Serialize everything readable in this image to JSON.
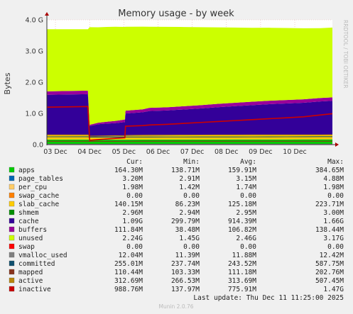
{
  "chart_data": {
    "type": "area",
    "title": "Memory usage - by week",
    "ylabel": "Bytes",
    "side_label": "RRDTOOL / TOBI OETIKER",
    "ylim": [
      0,
      4000000000.0
    ],
    "yticks": [
      {
        "value": 0,
        "label": "0.0"
      },
      {
        "value": 1000000000.0,
        "label": "1.0 G"
      },
      {
        "value": 2000000000.0,
        "label": "2.0 G"
      },
      {
        "value": 3000000000.0,
        "label": "3.0 G"
      },
      {
        "value": 4000000000.0,
        "label": "4.0 G"
      }
    ],
    "xlim": [
      0,
      8.35
    ],
    "xticks": [
      {
        "value": 0.25,
        "label": "03 Dec"
      },
      {
        "value": 1.25,
        "label": "04 Dec"
      },
      {
        "value": 2.25,
        "label": "05 Dec"
      },
      {
        "value": 3.25,
        "label": "06 Dec"
      },
      {
        "value": 4.25,
        "label": "07 Dec"
      },
      {
        "value": 5.25,
        "label": "08 Dec"
      },
      {
        "value": 6.25,
        "label": "09 Dec"
      },
      {
        "value": 7.25,
        "label": "10 Dec"
      }
    ],
    "x": [
      0,
      1.2,
      1.25,
      1.5,
      1.75,
      2.0,
      2.28,
      2.3,
      2.8,
      3.0,
      3.5,
      4.0,
      4.5,
      5.0,
      5.5,
      6.0,
      6.5,
      7.0,
      7.5,
      8.0,
      8.35
    ],
    "series": [
      {
        "name": "apps",
        "kind": "area",
        "color": "#00cc00",
        "values": [
          160000000.0,
          160000000.0,
          150000000.0,
          150000000.0,
          155000000.0,
          155000000.0,
          155000000.0,
          155000000.0,
          158000000.0,
          158000000.0,
          160000000.0,
          160000000.0,
          160000000.0,
          160000000.0,
          162000000.0,
          162000000.0,
          162000000.0,
          163000000.0,
          164000000.0,
          164000000.0,
          164000000.0
        ]
      },
      {
        "name": "page_tables",
        "kind": "area",
        "color": "#0066b3",
        "values": [
          3000000.0,
          3000000.0,
          3000000.0,
          3000000.0,
          3000000.0,
          3000000.0,
          3000000.0,
          3000000.0,
          3000000.0,
          3000000.0,
          3100000.0,
          3100000.0,
          3100000.0,
          3100000.0,
          3200000.0,
          3200000.0,
          3200000.0,
          3200000.0,
          3200000.0,
          3200000.0,
          3200000.0
        ]
      },
      {
        "name": "per_cpu",
        "kind": "area",
        "color": "#ff8000",
        "values": [
          1700000.0,
          1700000.0,
          1700000.0,
          1700000.0,
          1700000.0,
          1700000.0,
          1700000.0,
          1700000.0,
          1800000.0,
          1800000.0,
          1800000.0,
          1800000.0,
          1900000.0,
          1900000.0,
          1900000.0,
          2000000.0,
          2000000.0,
          2000000.0,
          2000000.0,
          2000000.0,
          2000000.0
        ]
      },
      {
        "name": "swap_cache",
        "kind": "area",
        "color": "#ffcc00",
        "values": [
          0,
          0,
          0,
          0,
          0,
          0,
          0,
          0,
          0,
          0,
          0,
          0,
          0,
          0,
          0,
          0,
          0,
          0,
          0,
          0,
          0
        ]
      },
      {
        "name": "slab_cache",
        "kind": "area",
        "color": "#ffcc00",
        "values": [
          130000000.0,
          130000000.0,
          86000000.0,
          95000000.0,
          100000000.0,
          105000000.0,
          110000000.0,
          115000000.0,
          120000000.0,
          122000000.0,
          125000000.0,
          128000000.0,
          130000000.0,
          132000000.0,
          133000000.0,
          135000000.0,
          136000000.0,
          137000000.0,
          138000000.0,
          140000000.0,
          140000000.0
        ]
      },
      {
        "name": "shmem",
        "kind": "area",
        "color": "#008f00",
        "values": [
          2950000.0,
          2950000.0,
          2950000.0,
          2950000.0,
          2950000.0,
          2950000.0,
          2950000.0,
          2950000.0,
          2950000.0,
          2950000.0,
          2950000.0,
          2950000.0,
          2950000.0,
          2950000.0,
          2950000.0,
          2960000.0,
          2960000.0,
          2960000.0,
          2960000.0,
          2960000.0,
          2960000.0
        ]
      },
      {
        "name": "cache",
        "kind": "area",
        "color": "#330099",
        "values": [
          1300000000.0,
          1320000000.0,
          350000000.0,
          400000000.0,
          410000000.0,
          420000000.0,
          450000000.0,
          720000000.0,
          750000000.0,
          790000000.0,
          800000000.0,
          830000000.0,
          860000000.0,
          900000000.0,
          930000000.0,
          960000000.0,
          990000000.0,
          1010000000.0,
          1030000000.0,
          1070000000.0,
          1090000000.0
        ]
      },
      {
        "name": "buffers",
        "kind": "area",
        "color": "#990099",
        "values": [
          110000000.0,
          112000000.0,
          40000000.0,
          50000000.0,
          60000000.0,
          70000000.0,
          80000000.0,
          90000000.0,
          95000000.0,
          100000000.0,
          103000000.0,
          105000000.0,
          107000000.0,
          108000000.0,
          109000000.0,
          110000000.0,
          110000000.0,
          111000000.0,
          111000000.0,
          112000000.0,
          112000000.0
        ]
      },
      {
        "name": "unused",
        "kind": "area",
        "color": "#ccff00",
        "values": [
          1990000000.0,
          1970000000.0,
          3130000000.0,
          3060000000.0,
          3040000000.0,
          3020000000.0,
          2970000000.0,
          2690000000.0,
          2650000000.0,
          2600000000.0,
          2580000000.0,
          2540000000.0,
          2500000000.0,
          2450000000.0,
          2410000000.0,
          2370000000.0,
          2340000000.0,
          2310000000.0,
          2280000000.0,
          2240000000.0,
          2240000000.0
        ]
      },
      {
        "name": "swap",
        "kind": "area",
        "color": "#ff0000",
        "values": [
          0,
          0,
          0,
          0,
          0,
          0,
          0,
          0,
          0,
          0,
          0,
          0,
          0,
          0,
          0,
          0,
          0,
          0,
          0,
          0,
          0
        ]
      },
      {
        "name": "vmalloc_used",
        "kind": "line",
        "color": "#808080",
        "values": [
          11900000.0,
          11900000.0,
          11400000.0,
          11500000.0,
          11600000.0,
          11700000.0,
          11800000.0,
          11800000.0,
          11800000.0,
          11800000.0,
          11900000.0,
          11900000.0,
          11900000.0,
          11900000.0,
          12000000.0,
          12000000.0,
          12000000.0,
          12000000.0,
          12000000.0,
          12000000.0,
          12000000.0
        ]
      },
      {
        "name": "committed",
        "kind": "line",
        "color": "#0f4f6e",
        "values": [
          250000000.0,
          252000000.0,
          240000000.0,
          240000000.0,
          240000000.0,
          241000000.0,
          242000000.0,
          242000000.0,
          243000000.0,
          243000000.0,
          244000000.0,
          244000000.0,
          245000000.0,
          245000000.0,
          246000000.0,
          247000000.0,
          248000000.0,
          250000000.0,
          252000000.0,
          254000000.0,
          255000000.0
        ]
      },
      {
        "name": "mapped",
        "kind": "line",
        "color": "#88331c",
        "values": [
          110000000.0,
          110000000.0,
          104000000.0,
          105000000.0,
          106000000.0,
          107000000.0,
          108000000.0,
          108000000.0,
          109000000.0,
          109000000.0,
          110000000.0,
          110000000.0,
          110000000.0,
          110000000.0,
          110000000.0,
          110000000.0,
          110000000.0,
          110000000.0,
          110000000.0,
          110000000.0,
          110000000.0
        ]
      },
      {
        "name": "active",
        "kind": "line",
        "color": "#b8860b",
        "values": [
          310000000.0,
          312000000.0,
          270000000.0,
          275000000.0,
          280000000.0,
          285000000.0,
          290000000.0,
          295000000.0,
          300000000.0,
          302000000.0,
          304000000.0,
          306000000.0,
          307000000.0,
          308000000.0,
          309000000.0,
          310000000.0,
          310000000.0,
          311000000.0,
          312000000.0,
          312000000.0,
          313000000.0
        ]
      },
      {
        "name": "inactive",
        "kind": "line",
        "color": "#cc0000",
        "values": [
          1200000000.0,
          1220000000.0,
          140000000.0,
          160000000.0,
          180000000.0,
          200000000.0,
          220000000.0,
          590000000.0,
          610000000.0,
          630000000.0,
          650000000.0,
          680000000.0,
          710000000.0,
          740000000.0,
          770000000.0,
          800000000.0,
          830000000.0,
          860000000.0,
          890000000.0,
          950000000.0,
          989000000.0
        ]
      }
    ]
  },
  "legend": {
    "headers": {
      "cur": "Cur:",
      "min": "Min:",
      "avg": "Avg:",
      "max": "Max:"
    },
    "rows": [
      {
        "name": "apps",
        "color": "#00cc00",
        "cur": "164.30M",
        "min": "138.71M",
        "avg": "159.91M",
        "max": "384.65M"
      },
      {
        "name": "page_tables",
        "color": "#0066b3",
        "cur": "3.20M",
        "min": "2.91M",
        "avg": "3.15M",
        "max": "4.88M"
      },
      {
        "name": "per_cpu",
        "color": "#ffcc66",
        "cur": "1.98M",
        "min": "1.42M",
        "avg": "1.74M",
        "max": "1.98M"
      },
      {
        "name": "swap_cache",
        "color": "#ff8000",
        "cur": "0.00",
        "min": "0.00",
        "avg": "0.00",
        "max": "0.00"
      },
      {
        "name": "slab_cache",
        "color": "#ffcc00",
        "cur": "140.15M",
        "min": "86.23M",
        "avg": "125.18M",
        "max": "223.71M"
      },
      {
        "name": "shmem",
        "color": "#008f00",
        "cur": "2.96M",
        "min": "2.94M",
        "avg": "2.95M",
        "max": "3.00M"
      },
      {
        "name": "cache",
        "color": "#330099",
        "cur": "1.09G",
        "min": "299.79M",
        "avg": "914.39M",
        "max": "1.66G"
      },
      {
        "name": "buffers",
        "color": "#990099",
        "cur": "111.84M",
        "min": "38.48M",
        "avg": "106.82M",
        "max": "138.44M"
      },
      {
        "name": "unused",
        "color": "#ccff00",
        "cur": "2.24G",
        "min": "1.45G",
        "avg": "2.46G",
        "max": "3.17G"
      },
      {
        "name": "swap",
        "color": "#ff0000",
        "cur": "0.00",
        "min": "0.00",
        "avg": "0.00",
        "max": "0.00"
      },
      {
        "name": "vmalloc_used",
        "color": "#808080",
        "cur": "12.04M",
        "min": "11.39M",
        "avg": "11.88M",
        "max": "12.42M"
      },
      {
        "name": "committed",
        "color": "#0f4f6e",
        "cur": "255.01M",
        "min": "237.74M",
        "avg": "243.52M",
        "max": "587.75M"
      },
      {
        "name": "mapped",
        "color": "#88331c",
        "cur": "110.44M",
        "min": "103.33M",
        "avg": "111.18M",
        "max": "202.76M"
      },
      {
        "name": "active",
        "color": "#b8860b",
        "cur": "312.69M",
        "min": "266.53M",
        "avg": "313.69M",
        "max": "507.45M"
      },
      {
        "name": "inactive",
        "color": "#cc0000",
        "cur": "988.76M",
        "min": "137.97M",
        "avg": "775.91M",
        "max": "1.47G"
      }
    ]
  },
  "last_update": "Last update: Thu Dec 11 11:25:00 2025",
  "footer": "Munin 2.0.76"
}
